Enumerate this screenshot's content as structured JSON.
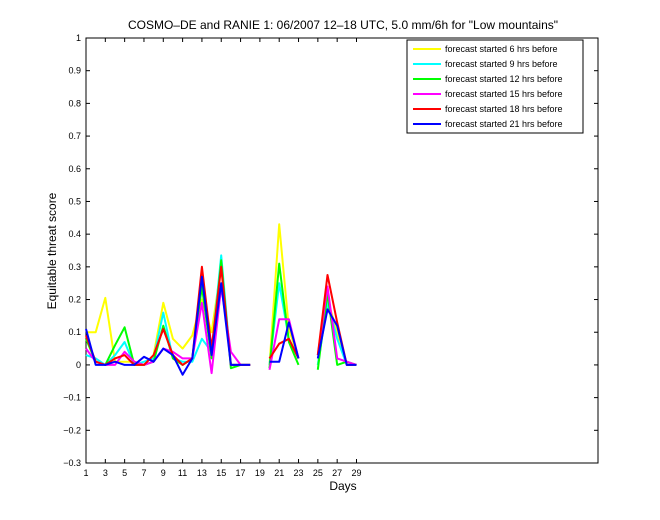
{
  "chart_data": {
    "type": "line",
    "title": "COSMO–DE and RANIE 1: 06/2007 12–18 UTC, 5.0 mm/6h for \"Low mountains\"",
    "xlabel": "Days",
    "ylabel": "Equitable threat score",
    "xlim": [
      1,
      54
    ],
    "ylim": [
      -0.3,
      1
    ],
    "xticks": [
      1,
      3,
      5,
      7,
      9,
      11,
      13,
      15,
      17,
      19,
      21,
      23,
      25,
      27,
      29
    ],
    "yticks": [
      -0.3,
      -0.2,
      -0.1,
      0,
      0.1,
      0.2,
      0.3,
      0.4,
      0.5,
      0.6,
      0.7,
      0.8,
      0.9,
      1
    ],
    "ytick_labels": [
      "−0.3",
      "−0.2",
      "−0.1",
      "0",
      "0.1",
      "0.2",
      "0.3",
      "0.4",
      "0.5",
      "0.6",
      "0.7",
      "0.8",
      "0.9",
      "1"
    ],
    "legend_position": "top-right",
    "series": [
      {
        "name": "forecast started 6 hrs before",
        "color": "#ffff00",
        "values": [
          0.1,
          0.1,
          0.205,
          0.01,
          0.01,
          0.01,
          0.0,
          0.03,
          0.19,
          0.08,
          0.05,
          0.09,
          0.2,
          0.1,
          0.3,
          0.0,
          0.0,
          0.0,
          null,
          0.0,
          0.43,
          0.11,
          0.02,
          null,
          0.0,
          0.2,
          0.1,
          0.0,
          0.0,
          null,
          0.0
        ]
      },
      {
        "name": "forecast started 9 hrs before",
        "color": "#00ffff",
        "values": [
          0.03,
          0.02,
          0.0,
          0.03,
          0.07,
          0.0,
          0.01,
          0.02,
          0.16,
          0.02,
          0.01,
          0.01,
          0.08,
          0.04,
          0.335,
          0.0,
          0.0,
          0.0,
          null,
          0.0,
          0.25,
          0.08,
          0.02,
          null,
          0.0,
          0.19,
          0.08,
          0.0,
          0.0,
          null,
          0.0
        ]
      },
      {
        "name": "forecast started 12 hrs before",
        "color": "#00ff00",
        "values": [
          0.08,
          0.01,
          0.0,
          0.06,
          0.115,
          0.0,
          0.0,
          0.01,
          0.12,
          0.02,
          0.0,
          0.02,
          0.24,
          0.02,
          0.32,
          -0.01,
          0.0,
          0.0,
          null,
          -0.01,
          0.31,
          0.07,
          0.0,
          null,
          -0.015,
          0.22,
          0.0,
          0.01,
          0.0,
          null,
          0.0
        ]
      },
      {
        "name": "forecast started 15 hrs before",
        "color": "#ff00ff",
        "values": [
          0.05,
          0.01,
          0.0,
          0.0,
          0.04,
          0.01,
          0.0,
          0.01,
          0.05,
          0.04,
          0.02,
          0.02,
          0.19,
          -0.025,
          0.24,
          0.04,
          0.0,
          0.0,
          null,
          -0.015,
          0.14,
          0.14,
          0.02,
          null,
          0.03,
          0.24,
          0.02,
          0.01,
          0.0,
          null,
          0.0
        ]
      },
      {
        "name": "forecast started 18 hrs before",
        "color": "#ff0000",
        "values": [
          0.09,
          0.01,
          0.0,
          0.02,
          0.03,
          0.0,
          0.0,
          0.03,
          0.11,
          0.03,
          0.0,
          0.02,
          0.3,
          0.05,
          0.3,
          0.0,
          0.0,
          0.0,
          null,
          0.02,
          0.065,
          0.08,
          0.02,
          null,
          0.03,
          0.275,
          0.13,
          0.0,
          0.0,
          null,
          0.0
        ]
      },
      {
        "name": "forecast started 21 hrs before",
        "color": "#0000ff",
        "values": [
          0.11,
          0.0,
          0.0,
          0.01,
          0.0,
          0.0,
          0.025,
          0.01,
          0.05,
          0.03,
          -0.03,
          0.02,
          0.27,
          0.03,
          0.25,
          0.0,
          0.0,
          0.0,
          null,
          0.01,
          0.01,
          0.13,
          0.02,
          null,
          0.02,
          0.17,
          0.12,
          0.0,
          0.0,
          null,
          0.0
        ]
      }
    ]
  }
}
